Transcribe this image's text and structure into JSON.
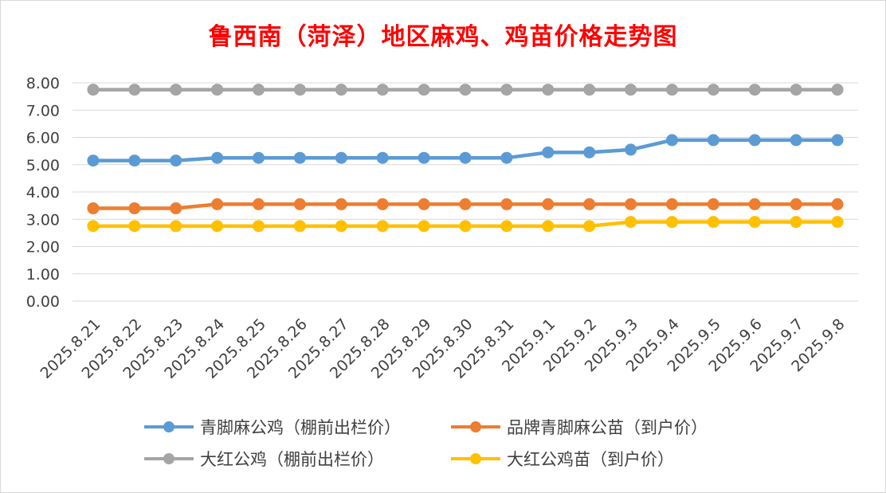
{
  "chart_data": {
    "type": "line",
    "title": "鲁西南（菏泽）地区麻鸡、鸡苗价格走势图",
    "xlabel": "",
    "ylabel": "",
    "ylim": [
      0,
      8
    ],
    "y_ticks": [
      "0.00",
      "1.00",
      "2.00",
      "3.00",
      "4.00",
      "5.00",
      "6.00",
      "7.00",
      "8.00"
    ],
    "grid": true,
    "legend_position": "bottom",
    "categories": [
      "2025.8.21",
      "2025.8.22",
      "2025.8.23",
      "2025.8.24",
      "2025.8.25",
      "2025.8.26",
      "2025.8.27",
      "2025.8.28",
      "2025.8.29",
      "2025.8.30",
      "2025.8.31",
      "2025.9.1",
      "2025.9.2",
      "2025.9.3",
      "2025.9.4",
      "2025.9.5",
      "2025.9.6",
      "2025.9.7",
      "2025.9.8"
    ],
    "series": [
      {
        "name": "青脚麻公鸡（棚前出栏价）",
        "color": "#5b9bd5",
        "values": [
          5.15,
          5.15,
          5.15,
          5.25,
          5.25,
          5.25,
          5.25,
          5.25,
          5.25,
          5.25,
          5.25,
          5.45,
          5.45,
          5.55,
          5.9,
          5.9,
          5.9,
          5.9,
          5.9
        ]
      },
      {
        "name": "品牌青脚麻公苗（到户价）",
        "color": "#ed7d31",
        "values": [
          3.4,
          3.4,
          3.4,
          3.55,
          3.55,
          3.55,
          3.55,
          3.55,
          3.55,
          3.55,
          3.55,
          3.55,
          3.55,
          3.55,
          3.55,
          3.55,
          3.55,
          3.55,
          3.55
        ]
      },
      {
        "name": "大红公鸡（棚前出栏价）",
        "color": "#a5a5a5",
        "values": [
          7.75,
          7.75,
          7.75,
          7.75,
          7.75,
          7.75,
          7.75,
          7.75,
          7.75,
          7.75,
          7.75,
          7.75,
          7.75,
          7.75,
          7.75,
          7.75,
          7.75,
          7.75,
          7.75
        ]
      },
      {
        "name": "大红公鸡苗（到户价）",
        "color": "#ffc000",
        "values": [
          2.75,
          2.75,
          2.75,
          2.75,
          2.75,
          2.75,
          2.75,
          2.75,
          2.75,
          2.75,
          2.75,
          2.75,
          2.75,
          2.9,
          2.9,
          2.9,
          2.9,
          2.9,
          2.9
        ]
      }
    ]
  }
}
